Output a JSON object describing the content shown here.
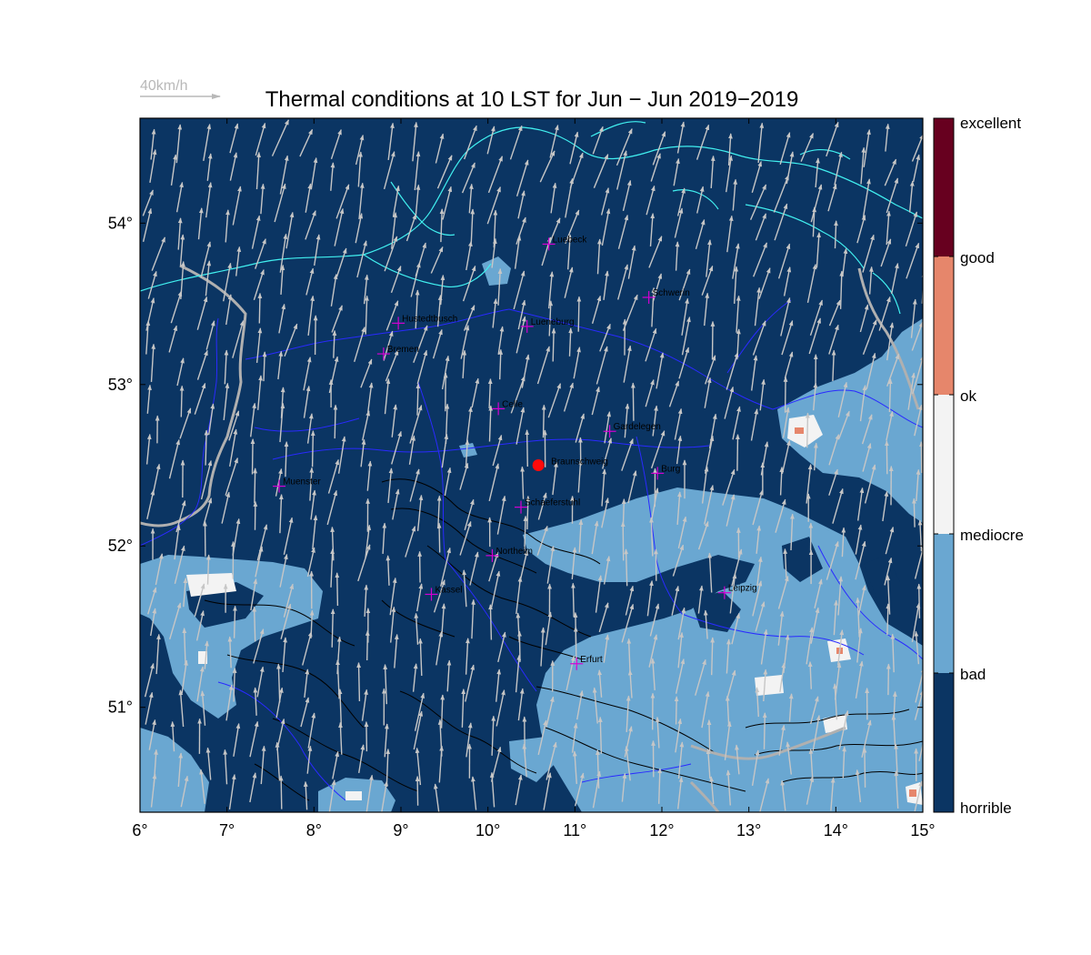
{
  "title": "Thermal conditions at 10 LST for Jun − Jun  2019−2019",
  "wind_reference": {
    "label": "40km/h",
    "color": "#b8b8b8"
  },
  "colors": {
    "horrible": "#0b3563",
    "bad": "#6aa7d1",
    "mediocre": "#f3f3f3",
    "ok": "#e6866b",
    "good": "#67001f",
    "excellent": "#67001f",
    "coast": "#41f0f0",
    "border": "#2a2aff",
    "river": "#b0b0b0",
    "relief": "#000000",
    "city_marker": "#d400d4",
    "target_marker": "#ff0a0a",
    "arrow": "#c6c6c6"
  },
  "axes": {
    "lon_min": 6,
    "lon_max": 15,
    "lat_min": 50.35,
    "lat_max": 54.65,
    "x_ticks": [
      "6°",
      "7°",
      "8°",
      "9°",
      "10°",
      "11°",
      "12°",
      "13°",
      "14°",
      "15°"
    ],
    "y_ticks": [
      "51°",
      "52°",
      "53°",
      "54°"
    ]
  },
  "colorbar_labels": [
    "excellent",
    "good",
    "ok",
    "mediocre",
    "bad",
    "horrible"
  ],
  "cities": [
    {
      "name": "Luebeck",
      "lon": 10.7,
      "lat": 53.87
    },
    {
      "name": "Schwerin",
      "lon": 11.85,
      "lat": 53.54
    },
    {
      "name": "Hustedtbusch",
      "lon": 8.97,
      "lat": 53.38
    },
    {
      "name": "Lueneburg",
      "lon": 10.45,
      "lat": 53.36
    },
    {
      "name": "Bremen",
      "lon": 8.8,
      "lat": 53.19
    },
    {
      "name": "Celle",
      "lon": 10.12,
      "lat": 52.85
    },
    {
      "name": "Gardelegen",
      "lon": 11.4,
      "lat": 52.71
    },
    {
      "name": "Burg",
      "lon": 11.95,
      "lat": 52.45
    },
    {
      "name": "Muenster",
      "lon": 7.6,
      "lat": 52.37
    },
    {
      "name": "Schaeferstuhl",
      "lon": 10.38,
      "lat": 52.24
    },
    {
      "name": "Northeim",
      "lon": 10.05,
      "lat": 51.94
    },
    {
      "name": "Kassel",
      "lon": 9.35,
      "lat": 51.7
    },
    {
      "name": "Leipzig",
      "lon": 12.72,
      "lat": 51.71
    },
    {
      "name": "Erfurt",
      "lon": 11.02,
      "lat": 51.27
    }
  ],
  "target": {
    "name": "Braunschweig",
    "lon": 10.58,
    "lat": 52.5
  }
}
